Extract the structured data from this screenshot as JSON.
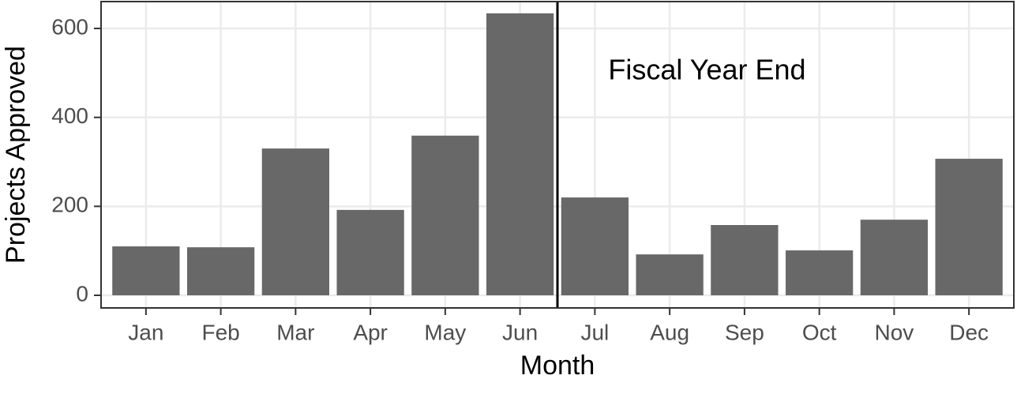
{
  "chart_data": {
    "type": "bar",
    "x_label": "Month",
    "y_label": "Projects Approved",
    "categories": [
      "Jan",
      "Feb",
      "Mar",
      "Apr",
      "May",
      "Jun",
      "Jul",
      "Aug",
      "Sep",
      "Oct",
      "Nov",
      "Dec"
    ],
    "values": [
      110,
      108,
      330,
      192,
      359,
      634,
      220,
      92,
      158,
      101,
      170,
      307
    ],
    "color": "#686868",
    "ylim": [
      -28.4,
      660.4
    ],
    "yticks": [
      0,
      200,
      400,
      600
    ],
    "grid": true,
    "annotation": "Fiscal Year End"
  }
}
